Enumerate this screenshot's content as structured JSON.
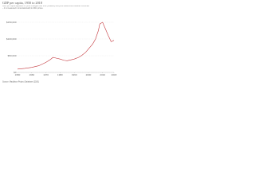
{
  "chart_data": {
    "type": "line",
    "title": "GDP per capita, 1950 to 2018",
    "subtitle": "GDP per capita adjusted for price changes over time (inflation) and price differences between countries – it is measured in international-$ in 2011 prices.",
    "source": "Source: Maddison Project Database (2020)",
    "x": [
      1950,
      1955,
      1960,
      1965,
      1970,
      1973,
      1975,
      1978,
      1980,
      1983,
      1985,
      1988,
      1990,
      1993,
      1995,
      1998,
      2000,
      2003,
      2005,
      2007,
      2008,
      2010,
      2011,
      2012,
      2014,
      2016,
      2018
    ],
    "series": [
      {
        "name": "GDP per capita",
        "color": "#c4393f",
        "values": [
          10000,
          12000,
          15000,
          20000,
          30000,
          38000,
          45000,
          42000,
          40000,
          36000,
          35000,
          38000,
          40000,
          45000,
          50000,
          60000,
          70000,
          85000,
          100000,
          125000,
          145000,
          150000,
          140000,
          130000,
          110000,
          92000,
          96000
        ]
      }
    ],
    "xlim": [
      1950,
      2018
    ],
    "xticks": [
      1950,
      1960,
      1970,
      1980,
      1990,
      2000,
      2010,
      2018
    ],
    "ylim": [
      0,
      150000
    ],
    "yticks": [
      {
        "value": 0,
        "label": "$0"
      },
      {
        "value": 50000,
        "label": "$50,000"
      },
      {
        "value": 100000,
        "label": "$100,000"
      },
      {
        "value": 150000,
        "label": "$150,000"
      }
    ],
    "grid": true
  }
}
